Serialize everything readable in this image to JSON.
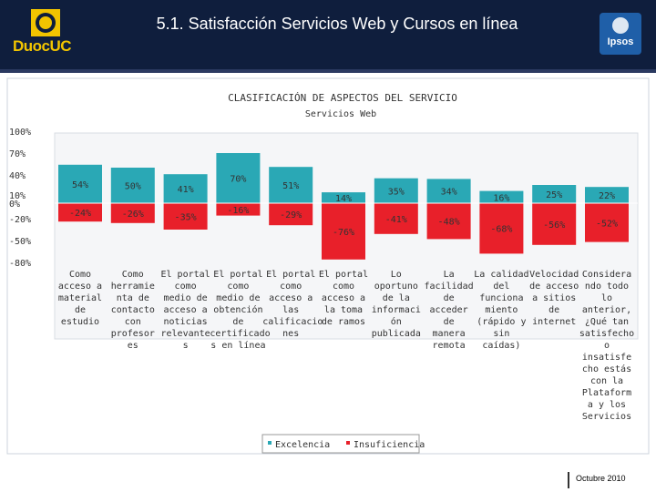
{
  "header": {
    "title": "5.1. Satisfacción Servicios Web y Cursos en línea",
    "logo_left_text": "DuocUC",
    "logo_right_text": "Ipsos"
  },
  "footer": {
    "date": "Octubre 2010"
  },
  "colors": {
    "header_bg": "#0f1e3d",
    "excelencia": "#2aa8b5",
    "insuficiencia": "#e8202a",
    "chart_border": "#ccd3dc"
  },
  "chart_data": {
    "type": "bar",
    "title": "CLASIFICACIÓN DE ASPECTOS DEL SERVICIO",
    "subtitle": "Servicios Web",
    "ylim": [
      -80,
      100
    ],
    "yticks": [
      "100%",
      "70%",
      "40%",
      "10%",
      "0%",
      "-20%",
      "-50%",
      "-80%"
    ],
    "ytick_values": [
      100,
      70,
      40,
      10,
      0,
      -20,
      -50,
      -80
    ],
    "legend_position": "bottom",
    "categories": [
      "Como\nacceso a\nmaterial\nde\nestudio",
      "Como\nherramie\nnta de\ncontacto\ncon\nprofesor\nes",
      "El portal\ncomo\nmedio de\nacceso a\nnoticias\nrelevante\ns",
      "El portal\ncomo\nmedio de\nobtención\nde\ncertificado\ns en línea",
      "El portal\ncomo\nacceso a\nlas\ncalificacio\nnes",
      "El portal\ncomo\nacceso a\nla toma\nde ramos",
      "Lo\noportuno\nde la\ninformaci\nón\npublicada",
      "La\nfacilidad\nde\nacceder\nde\nmanera\nremota",
      "La calidad\ndel\nfunciona\nmiento\n(rápido y\nsin\ncaídas)",
      "Velocidad\nde acceso\na sitios\nde\ninternet",
      "Considera\nndo todo\nlo\nanterior,\n¿Qué tan\nsatisfecho\no\ninsatisfe\ncho estás\ncon la\nPlataform\na y los\nServicios"
    ],
    "series": [
      {
        "name": "Excelencia",
        "values": [
          54,
          50,
          41,
          70,
          51,
          14,
          35,
          34,
          16,
          25,
          22
        ],
        "labels": [
          "54%",
          "50%",
          "41%",
          "70%",
          "51%",
          "14%",
          "35%",
          "34%",
          "16%",
          "25%",
          "22%"
        ]
      },
      {
        "name": "Insuficiencia",
        "values": [
          -24,
          -26,
          -35,
          -16,
          -29,
          -76,
          -41,
          -48,
          -68,
          -56,
          -52
        ],
        "labels": [
          "-24%",
          "-26%",
          "-35%",
          "-16%",
          "-29%",
          "-76%",
          "-41%",
          "-48%",
          "-68%",
          "-56%",
          "-52%"
        ]
      }
    ]
  }
}
